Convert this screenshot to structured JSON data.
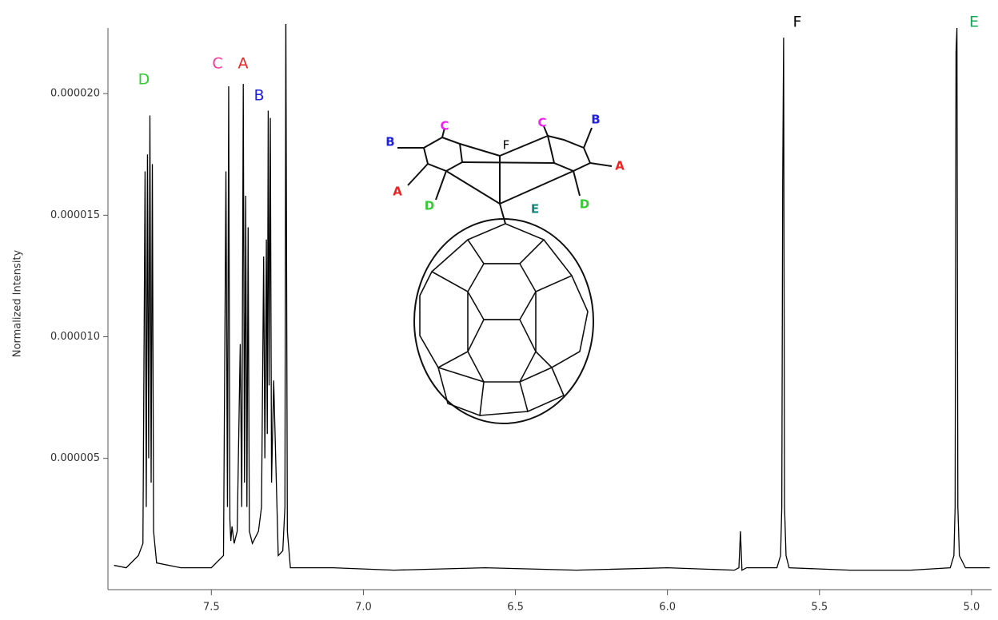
{
  "chart_data": {
    "type": "line",
    "y_label": "Normalized Intensity",
    "xlim": [
      7.84,
      4.934
    ],
    "ylim": [
      -4e-07,
      2.27e-05
    ],
    "xticks": [
      {
        "value": 7.5,
        "label": "7.5"
      },
      {
        "value": 7.0,
        "label": "7.0"
      },
      {
        "value": 6.5,
        "label": "6.5"
      },
      {
        "value": 6.0,
        "label": "6.0"
      },
      {
        "value": 5.5,
        "label": "5.5"
      },
      {
        "value": 5.0,
        "label": "5.0"
      }
    ],
    "yticks": [
      {
        "value": 5e-06,
        "label": "0.000005"
      },
      {
        "value": 1e-05,
        "label": "0.000010"
      },
      {
        "value": 1.5e-05,
        "label": "0.000015"
      },
      {
        "value": 2e-05,
        "label": "0.000020"
      }
    ],
    "series": [
      {
        "color": "#000000",
        "x": [
          7.82,
          7.78,
          7.74,
          7.725,
          7.718,
          7.714,
          7.71,
          7.706,
          7.702,
          7.698,
          7.694,
          7.69,
          7.68,
          7.6,
          7.5,
          7.46,
          7.452,
          7.447,
          7.443,
          7.439,
          7.436,
          7.432,
          7.425,
          7.415,
          7.405,
          7.4,
          7.395,
          7.391,
          7.387,
          7.383,
          7.379,
          7.375,
          7.365,
          7.345,
          7.335,
          7.328,
          7.324,
          7.319,
          7.316,
          7.313,
          7.31,
          7.306,
          7.302,
          7.295,
          7.28,
          7.265,
          7.258,
          7.255,
          7.25,
          7.24,
          7.1,
          6.9,
          6.6,
          6.3,
          6.0,
          5.78,
          5.765,
          5.76,
          5.755,
          5.74,
          5.64,
          5.628,
          5.624,
          5.621,
          5.618,
          5.615,
          5.61,
          5.6,
          5.4,
          5.2,
          5.07,
          5.058,
          5.054,
          5.051,
          5.048,
          5.045,
          5.04,
          5.02,
          4.94
        ],
        "values": [
          6e-07,
          5e-07,
          1e-06,
          1.5e-06,
          1.68e-05,
          3e-06,
          1.75e-05,
          5e-06,
          1.91e-05,
          4e-06,
          1.71e-05,
          2e-06,
          7e-07,
          5e-07,
          5e-07,
          1e-06,
          1.68e-05,
          3e-06,
          2.03e-05,
          2.5e-06,
          1.6e-06,
          2.2e-06,
          1.5e-06,
          2e-06,
          9.7e-06,
          3e-06,
          2.04e-05,
          4e-06,
          1.58e-05,
          3e-06,
          1.45e-05,
          2e-06,
          1.5e-06,
          2e-06,
          3e-06,
          1.33e-05,
          5e-06,
          1.4e-05,
          6e-06,
          1.93e-05,
          8e-06,
          1.9e-05,
          4e-06,
          8.2e-06,
          1e-06,
          1.2e-06,
          3e-06,
          2.35e-05,
          2e-06,
          5e-07,
          5e-07,
          4e-07,
          5e-07,
          4e-07,
          5e-07,
          4e-07,
          5e-07,
          2e-06,
          4e-07,
          5e-07,
          5e-07,
          1e-06,
          3e-06,
          1.65e-05,
          2.23e-05,
          3e-06,
          1e-06,
          5e-07,
          4e-07,
          4e-07,
          5e-07,
          1e-06,
          3e-06,
          2.17e-05,
          2.27e-05,
          3e-06,
          1e-06,
          5e-07,
          5e-07
        ]
      }
    ],
    "peak_labels": [
      {
        "text": "D",
        "color": "#33cc33"
      },
      {
        "text": "C",
        "color": "#ff3399"
      },
      {
        "text": "A",
        "color": "#ee2222"
      },
      {
        "text": "B",
        "color": "#2222dd"
      },
      {
        "text": "F",
        "color": "#000000"
      },
      {
        "text": "E",
        "color": "#11aa55"
      }
    ],
    "structure_labels": [
      {
        "text": "C",
        "color": "#ee22ee"
      },
      {
        "text": "C",
        "color": "#ee22ee"
      },
      {
        "text": "B",
        "color": "#2222dd"
      },
      {
        "text": "B",
        "color": "#2222dd"
      },
      {
        "text": "F",
        "color": "#000000"
      },
      {
        "text": "A",
        "color": "#ee2222"
      },
      {
        "text": "A",
        "color": "#ee2222"
      },
      {
        "text": "D",
        "color": "#33cc33"
      },
      {
        "text": "D",
        "color": "#33cc33"
      },
      {
        "text": "E",
        "color": "#118877"
      }
    ]
  }
}
